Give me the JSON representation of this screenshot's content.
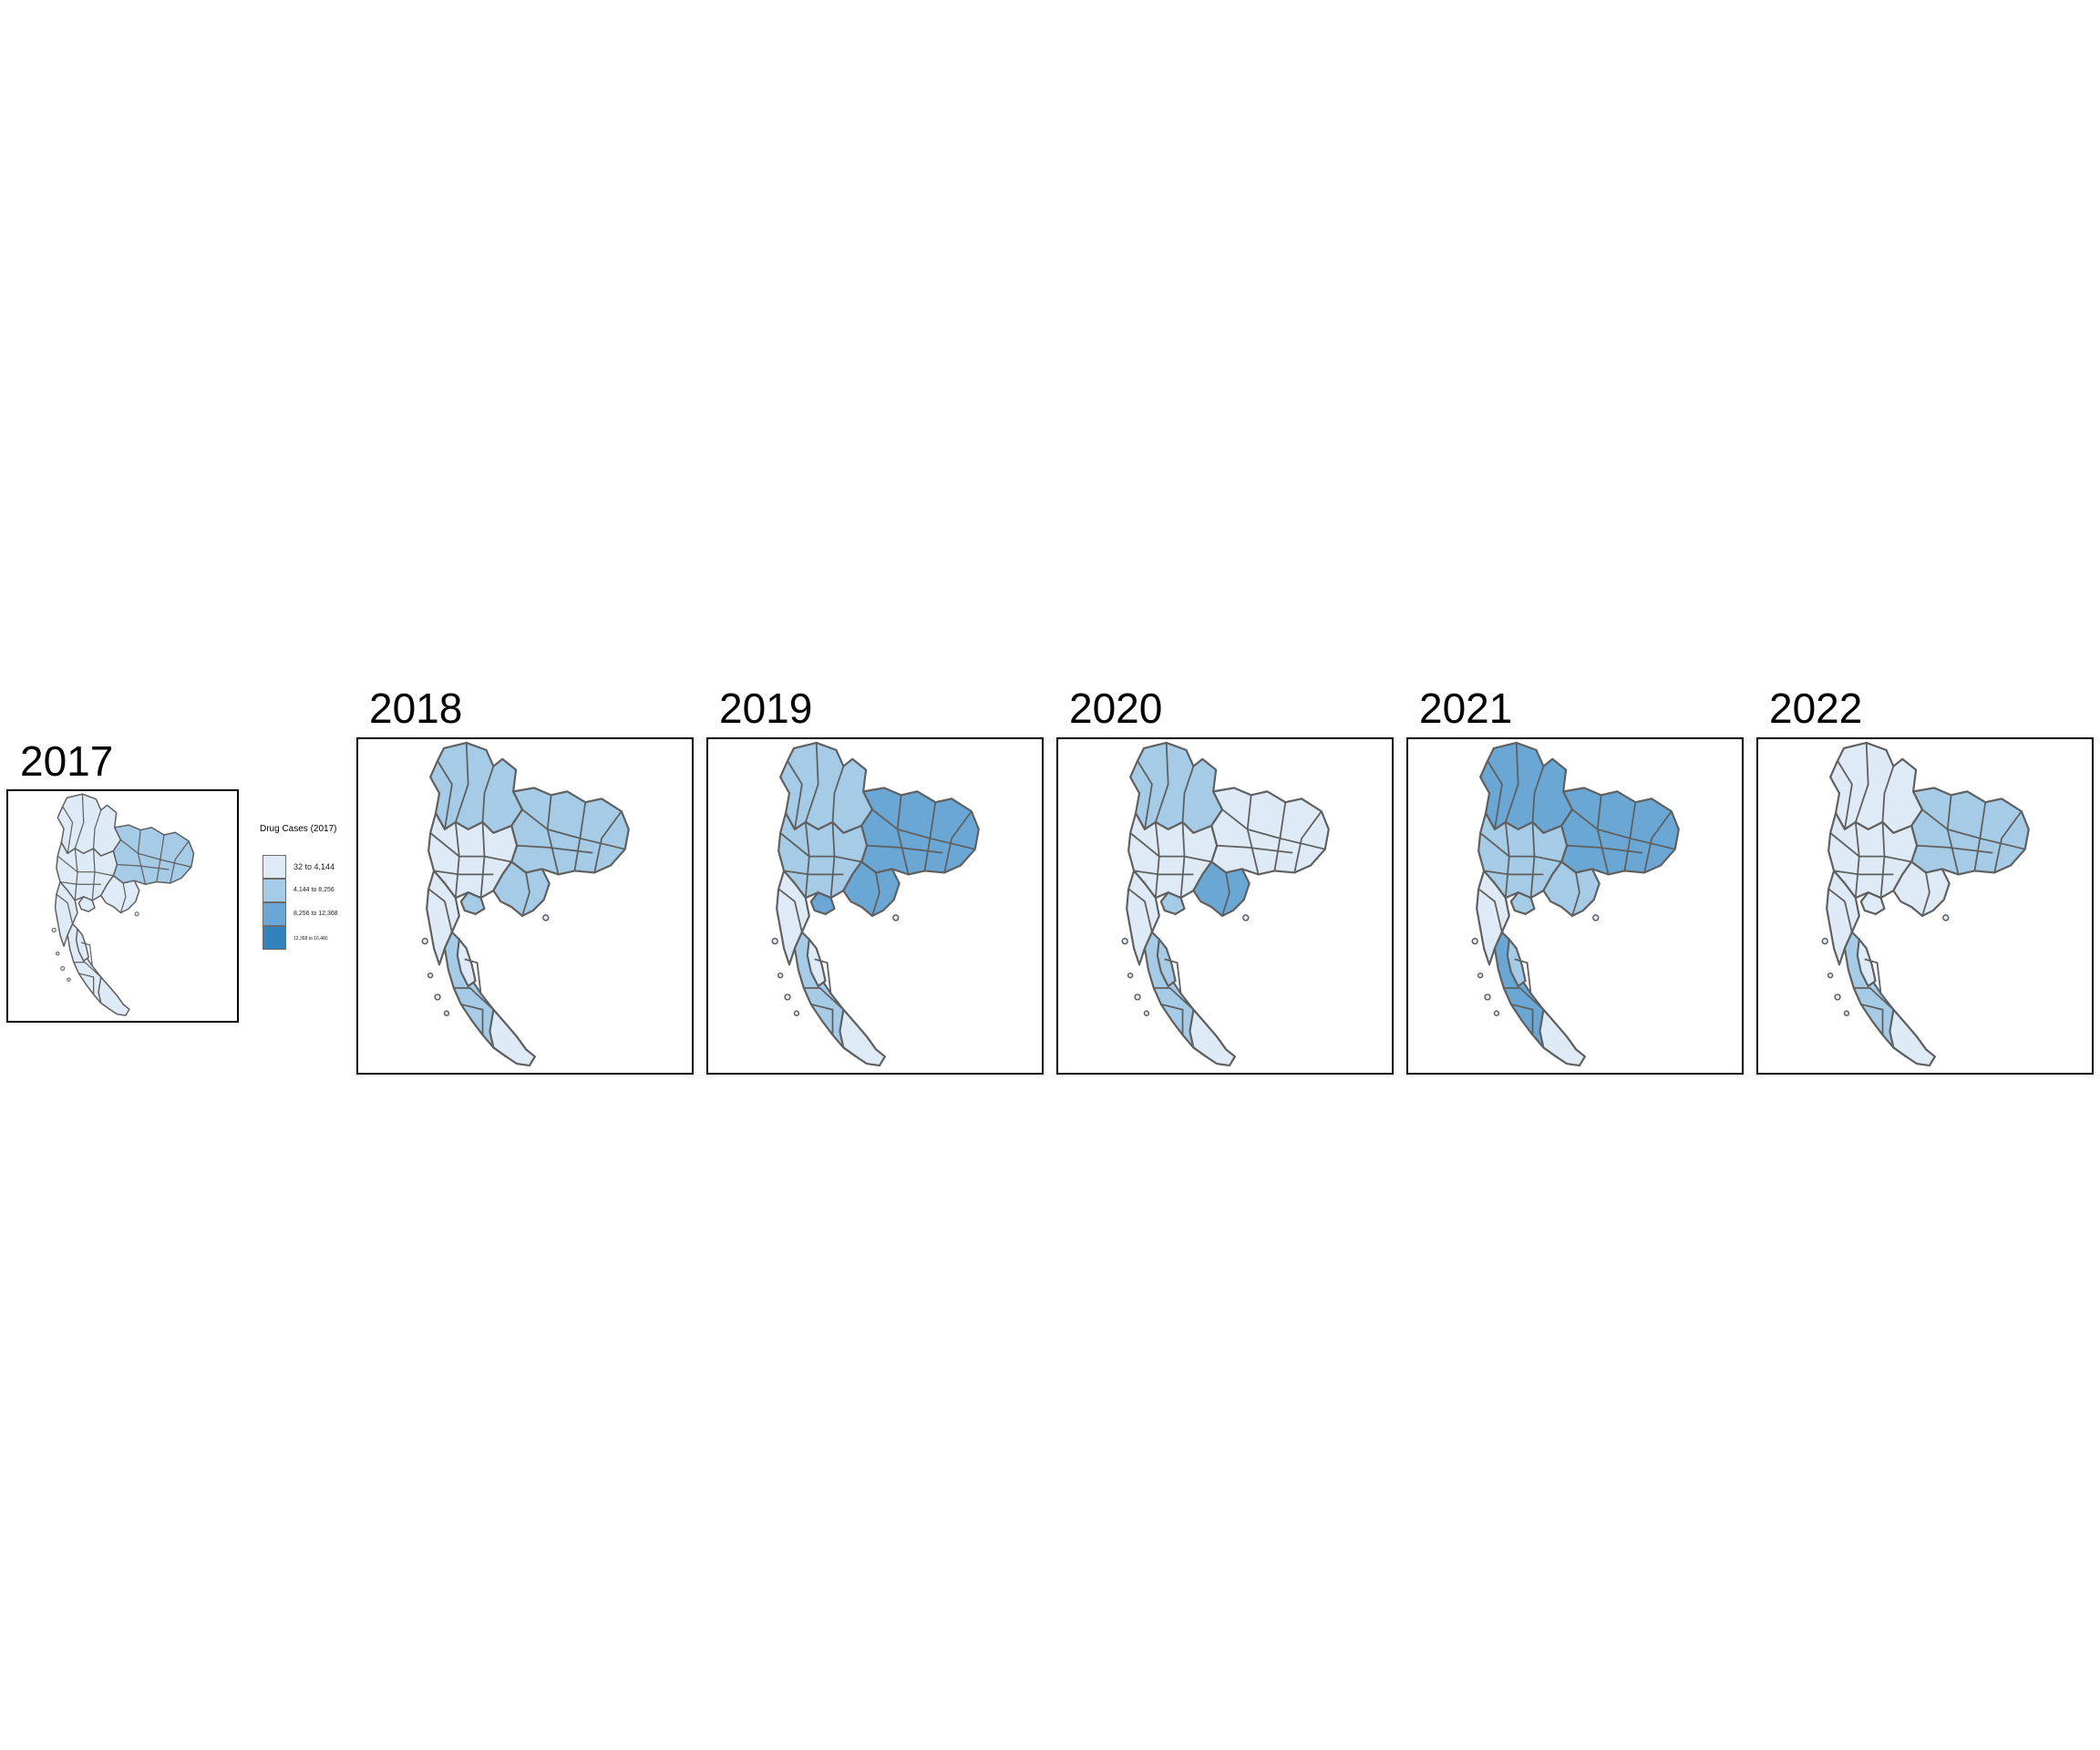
{
  "panels": [
    {
      "year": "2017"
    },
    {
      "year": "2018"
    },
    {
      "year": "2019"
    },
    {
      "year": "2020"
    },
    {
      "year": "2021"
    },
    {
      "year": "2022"
    }
  ],
  "legend": {
    "title": "Drug Cases (2017)",
    "classes": [
      {
        "label": "32 to 4,144",
        "color": "#deebf7"
      },
      {
        "label": "4,144 to 8,256",
        "color": "#a6cbe6"
      },
      {
        "label": "8,256 to 12,368",
        "color": "#6ba7d4"
      },
      {
        "label": "12,368 to 16,480",
        "color": "#3182bd"
      }
    ]
  },
  "colors": {
    "border": "#5f5f5f",
    "frame": "#000000"
  }
}
